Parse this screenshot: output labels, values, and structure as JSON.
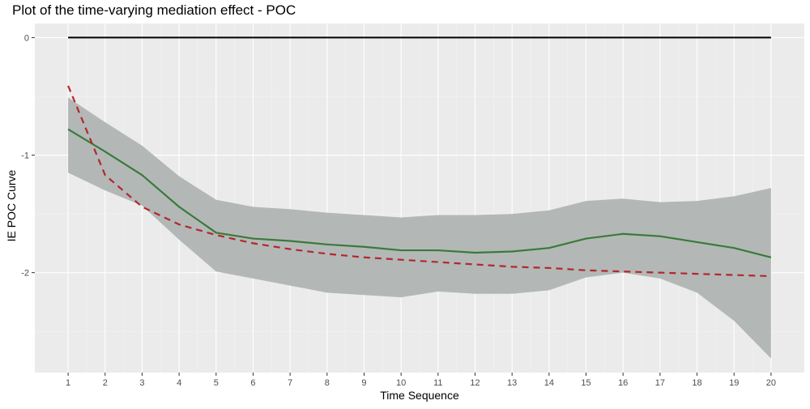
{
  "chart_data": {
    "type": "line",
    "title": "Plot of the time-varying mediation effect - POC",
    "xlabel": "Time Sequence",
    "ylabel": "IE POC Curve",
    "x": [
      1,
      2,
      3,
      4,
      5,
      6,
      7,
      8,
      9,
      10,
      11,
      12,
      13,
      14,
      15,
      16,
      17,
      18,
      19,
      20
    ],
    "xlim": [
      0.1,
      20.9
    ],
    "ylim": [
      -2.85,
      0.12
    ],
    "yticks": [
      0,
      -1,
      -2
    ],
    "grid": true,
    "legend": "none",
    "background": "#ebebeb",
    "series": [
      {
        "role": "confidence-band",
        "color": "#b3b8b7",
        "lower": [
          -1.15,
          -1.3,
          -1.43,
          -1.72,
          -1.99,
          -2.05,
          -2.11,
          -2.17,
          -2.19,
          -2.21,
          -2.16,
          -2.18,
          -2.18,
          -2.15,
          -2.04,
          -2.0,
          -2.05,
          -2.17,
          -2.41,
          -2.73
        ],
        "upper": [
          -0.51,
          -0.72,
          -0.92,
          -1.18,
          -1.38,
          -1.44,
          -1.46,
          -1.49,
          -1.51,
          -1.53,
          -1.51,
          -1.51,
          -1.5,
          -1.47,
          -1.39,
          -1.37,
          -1.4,
          -1.39,
          -1.35,
          -1.28
        ]
      },
      {
        "role": "estimate",
        "color": "#3a7a3a",
        "style": "solid",
        "values": [
          -0.78,
          -0.97,
          -1.17,
          -1.44,
          -1.66,
          -1.71,
          -1.73,
          -1.76,
          -1.78,
          -1.81,
          -1.81,
          -1.83,
          -1.82,
          -1.79,
          -1.71,
          -1.67,
          -1.69,
          -1.74,
          -1.79,
          -1.87
        ]
      },
      {
        "role": "reference",
        "color": "#b2282c",
        "style": "dashed",
        "values": [
          -0.41,
          -1.17,
          -1.44,
          -1.59,
          -1.68,
          -1.75,
          -1.8,
          -1.84,
          -1.87,
          -1.89,
          -1.91,
          -1.93,
          -1.95,
          -1.96,
          -1.98,
          -1.99,
          -2.0,
          -2.01,
          -2.02,
          -2.03
        ]
      },
      {
        "role": "zero-line",
        "color": "#000000",
        "style": "solid",
        "values": [
          0,
          0,
          0,
          0,
          0,
          0,
          0,
          0,
          0,
          0,
          0,
          0,
          0,
          0,
          0,
          0,
          0,
          0,
          0,
          0
        ]
      }
    ]
  }
}
